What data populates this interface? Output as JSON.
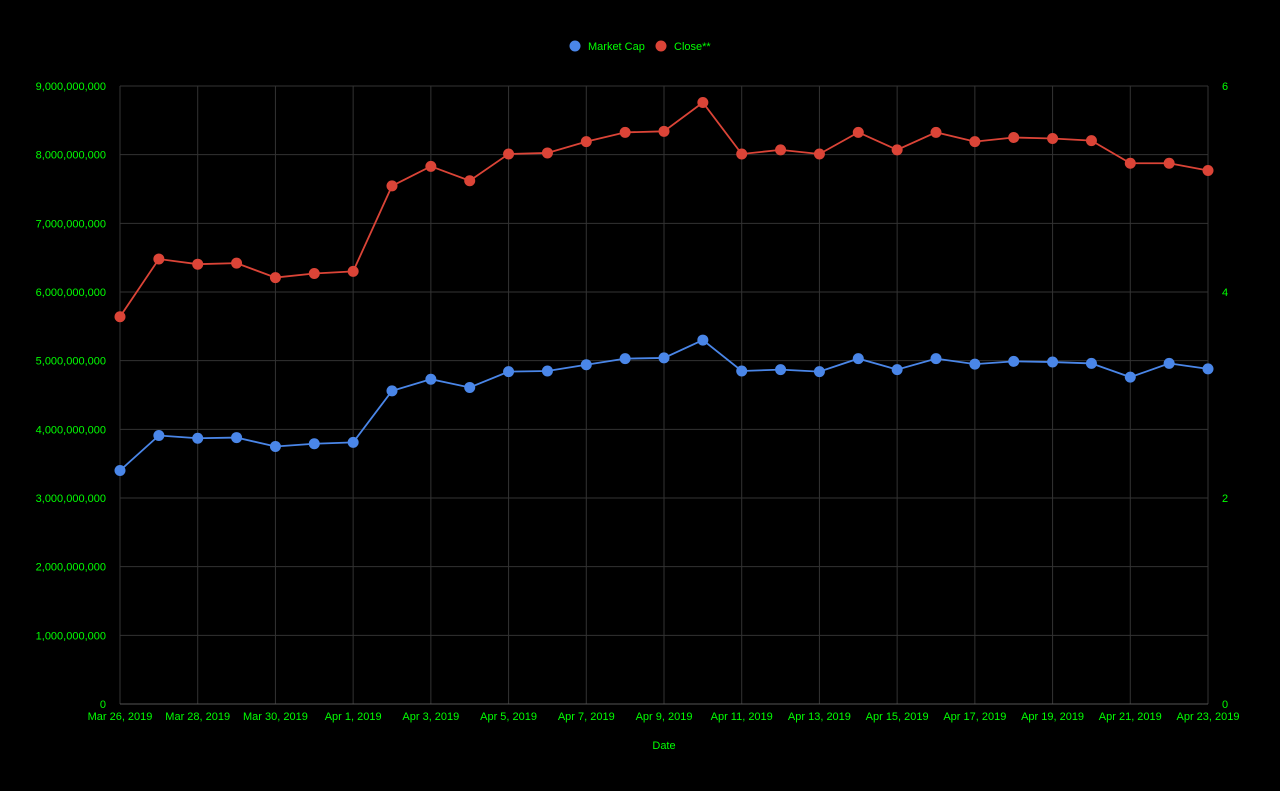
{
  "colors": {
    "background": "#000000",
    "text": "#00ff00",
    "grid": "#333333",
    "baseline": "#555555",
    "market_cap": "#4a86e8",
    "close": "#db4437"
  },
  "chart_data": {
    "type": "line",
    "title": "",
    "xlabel": "Date",
    "ylabel_left": "",
    "ylabel_right": "",
    "legend_position": "top",
    "grid": true,
    "x": [
      "Mar 26, 2019",
      "Mar 27, 2019",
      "Mar 28, 2019",
      "Mar 29, 2019",
      "Mar 30, 2019",
      "Mar 31, 2019",
      "Apr 1, 2019",
      "Apr 2, 2019",
      "Apr 3, 2019",
      "Apr 4, 2019",
      "Apr 5, 2019",
      "Apr 6, 2019",
      "Apr 7, 2019",
      "Apr 8, 2019",
      "Apr 9, 2019",
      "Apr 10, 2019",
      "Apr 11, 2019",
      "Apr 12, 2019",
      "Apr 13, 2019",
      "Apr 14, 2019",
      "Apr 15, 2019",
      "Apr 16, 2019",
      "Apr 17, 2019",
      "Apr 18, 2019",
      "Apr 19, 2019",
      "Apr 20, 2019",
      "Apr 21, 2019",
      "Apr 22, 2019",
      "Apr 23, 2019"
    ],
    "x_tick_labels": [
      "Mar 26, 2019",
      "Mar 28, 2019",
      "Mar 30, 2019",
      "Apr 1, 2019",
      "Apr 3, 2019",
      "Apr 5, 2019",
      "Apr 7, 2019",
      "Apr 9, 2019",
      "Apr 11, 2019",
      "Apr 13, 2019",
      "Apr 15, 2019",
      "Apr 17, 2019",
      "Apr 19, 2019",
      "Apr 21, 2019",
      "Apr 23, 2019"
    ],
    "y_left": {
      "range": [
        0,
        9000000000
      ],
      "ticks": [
        0,
        1000000000,
        2000000000,
        3000000000,
        4000000000,
        5000000000,
        6000000000,
        7000000000,
        8000000000,
        9000000000
      ],
      "tick_labels": [
        "0",
        "1,000,000,000",
        "2,000,000,000",
        "3,000,000,000",
        "4,000,000,000",
        "5,000,000,000",
        "6,000,000,000",
        "7,000,000,000",
        "8,000,000,000",
        "9,000,000,000"
      ]
    },
    "y_right": {
      "range": [
        0,
        6
      ],
      "ticks": [
        0,
        2,
        4,
        6
      ],
      "tick_labels": [
        "0",
        "2",
        "4",
        "6"
      ]
    },
    "series": [
      {
        "name": "Market Cap",
        "axis": "left",
        "color": "#4a86e8",
        "values": [
          3400000000,
          3910000000,
          3870000000,
          3880000000,
          3750000000,
          3790000000,
          3810000000,
          4560000000,
          4730000000,
          4610000000,
          4840000000,
          4850000000,
          4940000000,
          5030000000,
          5040000000,
          5300000000,
          4850000000,
          4870000000,
          4840000000,
          5030000000,
          4870000000,
          5030000000,
          4950000000,
          4990000000,
          4980000000,
          4960000000,
          4760000000,
          4960000000,
          4880000000
        ]
      },
      {
        "name": "Close**",
        "axis": "right",
        "color": "#db4437",
        "values": [
          3.76,
          4.32,
          4.27,
          4.28,
          4.14,
          4.18,
          4.2,
          5.03,
          5.22,
          5.08,
          5.34,
          5.35,
          5.46,
          5.55,
          5.56,
          5.84,
          5.34,
          5.38,
          5.34,
          5.55,
          5.38,
          5.55,
          5.46,
          5.5,
          5.49,
          5.47,
          5.25,
          5.25,
          5.18
        ]
      }
    ]
  }
}
